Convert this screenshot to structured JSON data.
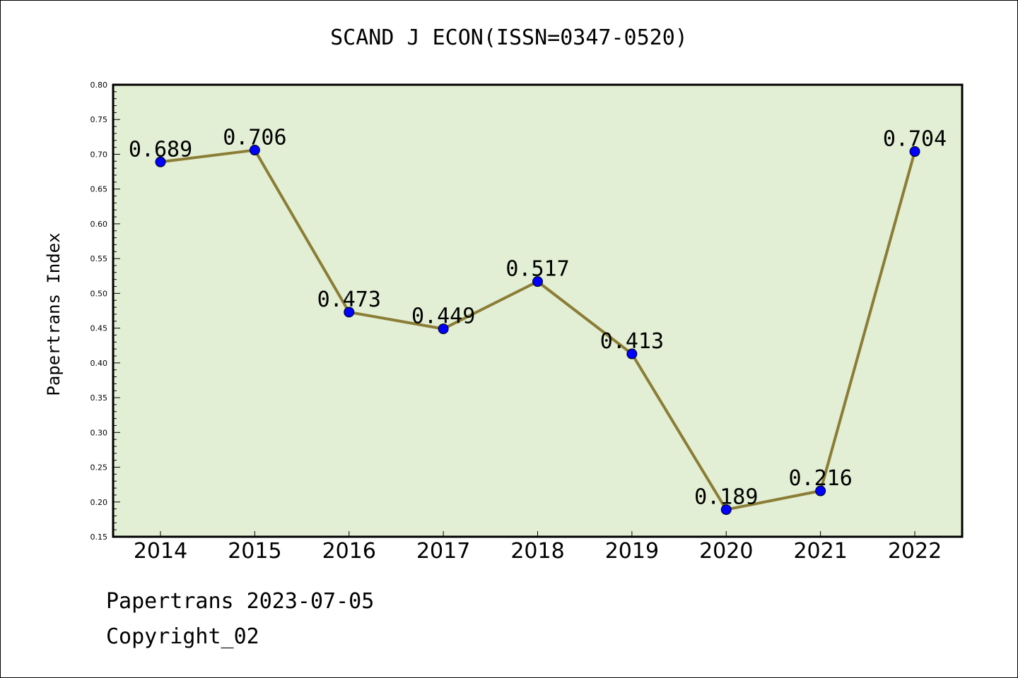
{
  "chart_data": {
    "type": "line",
    "title": "SCAND J ECON(ISSN=0347-0520)",
    "ylabel": "Papertrans Index",
    "xlabel": "",
    "categories": [
      "2014",
      "2015",
      "2016",
      "2017",
      "2018",
      "2019",
      "2020",
      "2021",
      "2022"
    ],
    "series": [
      {
        "values": [
          0.689,
          0.706,
          0.473,
          0.449,
          0.517,
          0.413,
          0.189,
          0.216,
          0.704
        ]
      }
    ],
    "data_labels": [
      "0.689",
      "0.706",
      "0.473",
      "0.449",
      "0.517",
      "0.413",
      "0.189",
      "0.216",
      "0.704"
    ],
    "ylim": [
      0.15,
      0.8
    ],
    "yticks": [
      "0.15",
      "0.20",
      "0.25",
      "0.30",
      "0.35",
      "0.40",
      "0.45",
      "0.50",
      "0.55",
      "0.60",
      "0.65",
      "0.70",
      "0.75",
      "0.80"
    ],
    "grid": false,
    "legend": "none",
    "colors": {
      "plot_background": "#e2efd5",
      "line": "#8b7d35",
      "marker": "#0000ff"
    }
  },
  "footer": {
    "line1": "Papertrans 2023-07-05",
    "line2": "Copyright_02"
  }
}
